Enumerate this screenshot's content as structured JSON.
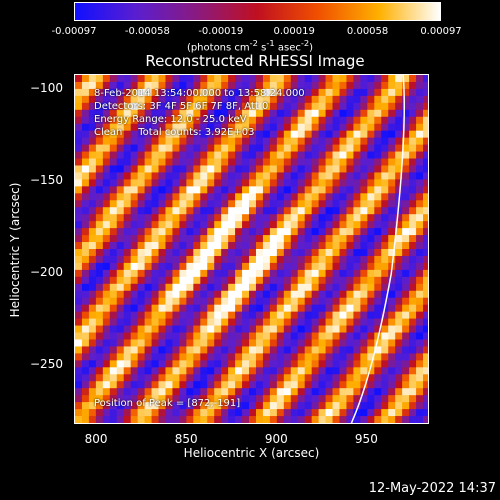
{
  "colorbar": {
    "ticks": [
      "-0.00097",
      "-0.00058",
      "-0.00019",
      "0.00019",
      "0.00058",
      "0.00097"
    ],
    "units_parts": [
      "(photons cm",
      "-2",
      " s",
      "-1",
      " asec",
      "-2",
      ")"
    ],
    "colors": [
      "#1010ff",
      "#5a1ed0",
      "#8a1a80",
      "#c01020",
      "#f05000",
      "#ffb000",
      "#ffffff"
    ]
  },
  "title": "Reconstructed RHESSI Image",
  "info_lines": {
    "time": "8-Feb-2014 13:54:00.000 to 13:58:24.000",
    "detectors": "Detectors: 3F 4F 5F 6F 7F 8F, Att 0",
    "energy": "Energy Range: 12.0 - 25.0 keV",
    "clean": "Clean     Total counts: 3.92E+03",
    "peak": "Position of Peak = [872,-191]"
  },
  "axes": {
    "xlabel": "Heliocentric X (arcsec)",
    "ylabel": "Heliocentric Y (arcsec)",
    "x_ticks": [
      "800",
      "850",
      "900",
      "950"
    ],
    "y_ticks": [
      "-100",
      "-150",
      "-200",
      "-250"
    ]
  },
  "chart_data": {
    "type": "heatmap",
    "title": "Reconstructed RHESSI Image",
    "xlabel": "Heliocentric X (arcsec)",
    "ylabel": "Heliocentric Y (arcsec)",
    "xlim": [
      788,
      985
    ],
    "ylim": [
      -282,
      -92
    ],
    "zlim": [
      -0.00097,
      0.00097
    ],
    "colormap": "red-temperature (blue to white)",
    "peak": [
      872,
      -191
    ],
    "limb_arc": true
  },
  "timestamp": "12-May-2022 14:37"
}
